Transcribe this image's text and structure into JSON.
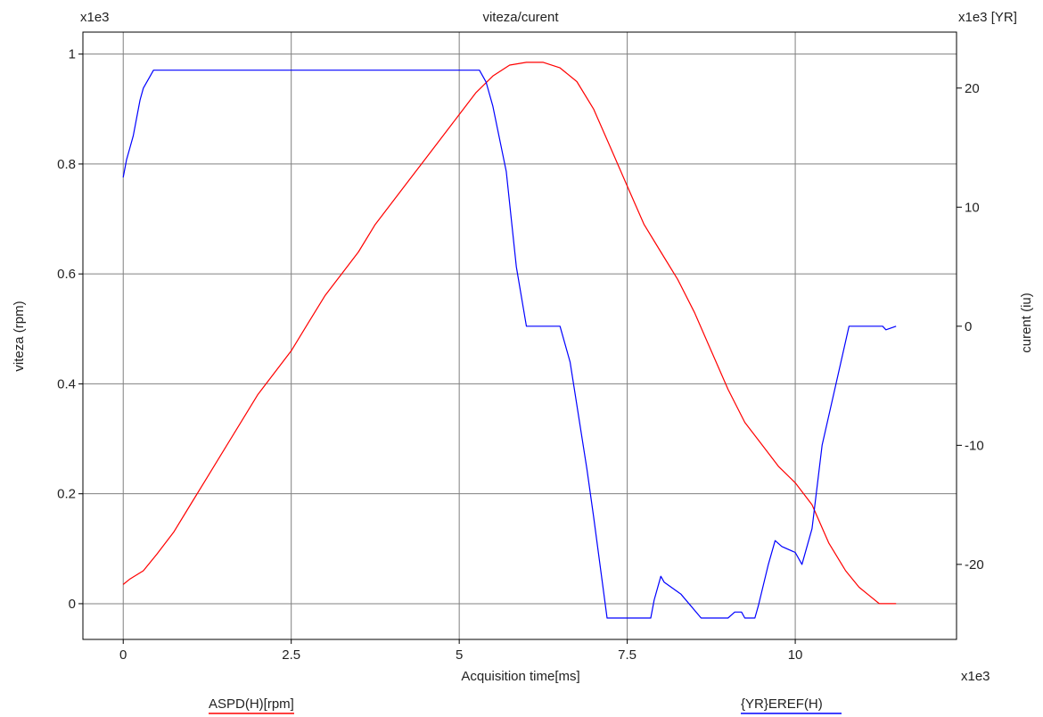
{
  "chart_data": {
    "type": "line",
    "title": "viteza/curent",
    "xlabel": "Acquisition time[ms]",
    "x_multiplier": "x1e3",
    "xlim": [
      -0.6,
      12.4
    ],
    "x_ticks": [
      "0",
      "2.5",
      "5",
      "7.5",
      "10"
    ],
    "y_left": {
      "label": "viteza (rpm)",
      "multiplier": "x1e3",
      "lim": [
        -0.065,
        1.04
      ],
      "ticks": [
        "0",
        "0.2",
        "0.4",
        "0.6",
        "0.8",
        "1"
      ]
    },
    "y_right": {
      "label": "curent (iu)",
      "multiplier": "x1e3  [YR]",
      "lim": [
        -26.3,
        24.7
      ],
      "ticks": [
        "20",
        "10",
        "0",
        "-10",
        "-20"
      ]
    },
    "grid": true,
    "series": [
      {
        "name": "ASPD(H)[rpm]",
        "axis": "left",
        "color": "#ff0000",
        "x": [
          0,
          0.1,
          0.3,
          0.5,
          0.75,
          1.0,
          1.25,
          1.5,
          1.75,
          2.0,
          2.25,
          2.5,
          2.75,
          3.0,
          3.25,
          3.5,
          3.75,
          4.0,
          4.25,
          4.5,
          4.75,
          5.0,
          5.25,
          5.5,
          5.75,
          6.0,
          6.25,
          6.5,
          6.75,
          7.0,
          7.25,
          7.5,
          7.75,
          8.0,
          8.25,
          8.5,
          8.75,
          9.0,
          9.25,
          9.5,
          9.75,
          10.0,
          10.25,
          10.5,
          10.75,
          10.95,
          11.1,
          11.25,
          11.5
        ],
        "y": [
          0.035,
          0.045,
          0.06,
          0.09,
          0.13,
          0.18,
          0.23,
          0.28,
          0.33,
          0.38,
          0.42,
          0.46,
          0.51,
          0.56,
          0.6,
          0.64,
          0.69,
          0.73,
          0.77,
          0.81,
          0.85,
          0.89,
          0.93,
          0.96,
          0.98,
          0.985,
          0.985,
          0.975,
          0.95,
          0.9,
          0.83,
          0.76,
          0.69,
          0.64,
          0.59,
          0.53,
          0.46,
          0.39,
          0.33,
          0.29,
          0.25,
          0.22,
          0.18,
          0.11,
          0.06,
          0.03,
          0.015,
          0.0,
          0.0
        ]
      },
      {
        "name": "{YR}EREF(H)",
        "axis": "right",
        "color": "#0000ff",
        "x": [
          0,
          0.05,
          0.1,
          0.15,
          0.2,
          0.25,
          0.3,
          0.4,
          0.45,
          0.5,
          0.55,
          5.0,
          5.3,
          5.4,
          5.5,
          5.7,
          5.85,
          6.0,
          6.5,
          6.65,
          6.9,
          7.0,
          7.2,
          7.85,
          7.9,
          8.0,
          8.05,
          8.3,
          8.6,
          9.0,
          9.1,
          9.2,
          9.25,
          9.4,
          9.45,
          9.6,
          9.7,
          9.8,
          10.0,
          10.1,
          10.25,
          10.4,
          10.6,
          10.8,
          11.3,
          11.35,
          11.5
        ],
        "y": [
          12.5,
          14,
          15,
          16,
          17.5,
          19,
          20,
          21,
          21.5,
          21.5,
          21.5,
          21.5,
          21.5,
          20.5,
          18.5,
          13,
          5,
          0,
          0,
          -3,
          -12,
          -16,
          -24.5,
          -24.5,
          -23,
          -21,
          -21.5,
          -22.5,
          -24.5,
          -24.5,
          -24,
          -24,
          -24.5,
          -24.5,
          -23.5,
          -20,
          -18,
          -18.5,
          -19,
          -20,
          -17,
          -10,
          -5,
          0,
          0,
          -0.3,
          0
        ]
      }
    ],
    "legend": [
      {
        "label": "ASPD(H)[rpm]",
        "color": "#ff0000",
        "position": "bottom-left"
      },
      {
        "label": "{YR}EREF(H)",
        "color": "#0000ff",
        "position": "bottom-right"
      }
    ]
  }
}
